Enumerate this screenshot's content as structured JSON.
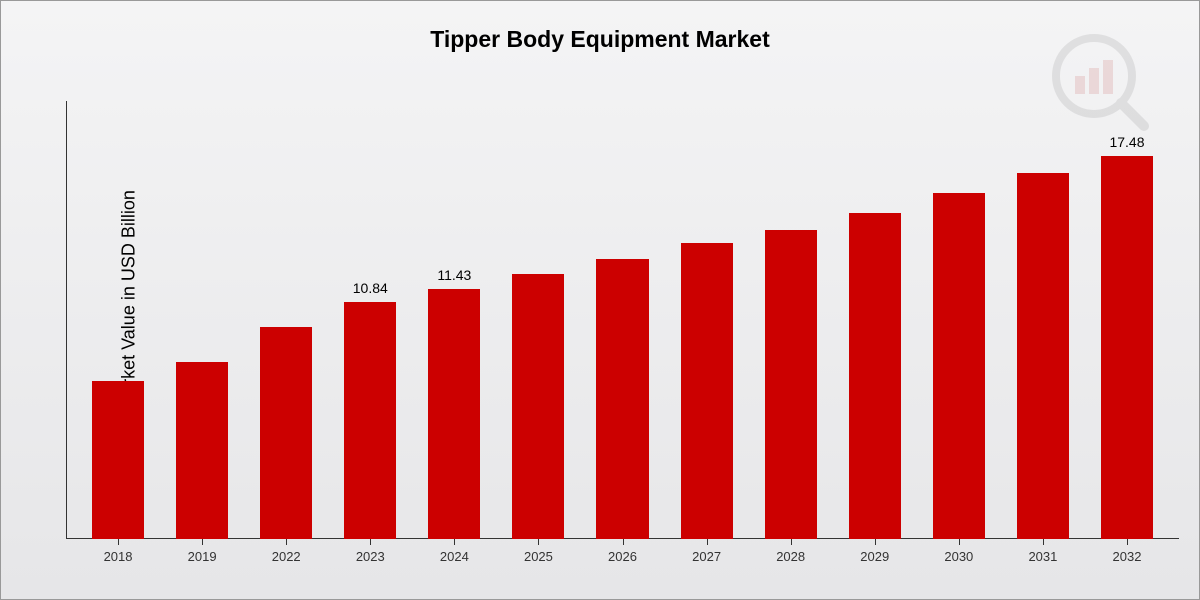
{
  "chart": {
    "type": "bar",
    "title": "Tipper Body Equipment Market",
    "y_axis_label": "Market Value in USD Billion",
    "background_gradient": {
      "from": "#f4f4f5",
      "to": "#e6e6e8"
    },
    "border_color": "#999999",
    "bar_color": "#cc0000",
    "axis_color": "#333333",
    "title_fontsize": 23,
    "axis_label_fontsize": 18,
    "value_label_fontsize": 14,
    "x_label_fontsize": 13,
    "y_max": 20,
    "bar_width_ratio": 0.62,
    "categories": [
      "2018",
      "2019",
      "2022",
      "2023",
      "2024",
      "2025",
      "2026",
      "2027",
      "2028",
      "2029",
      "2030",
      "2031",
      "2032"
    ],
    "values": [
      7.2,
      8.1,
      9.7,
      10.84,
      11.43,
      12.1,
      12.8,
      13.5,
      14.1,
      14.9,
      15.8,
      16.7,
      17.48
    ],
    "show_value_label": [
      false,
      false,
      false,
      true,
      true,
      false,
      false,
      false,
      false,
      false,
      false,
      false,
      true
    ],
    "value_labels": [
      "",
      "",
      "",
      "10.84",
      "11.43",
      "",
      "",
      "",
      "",
      "",
      "",
      "",
      "17.48"
    ]
  },
  "watermark": {
    "bars_color": "#b71c1c",
    "ring_color": "#555555",
    "handle_color": "#555555"
  }
}
